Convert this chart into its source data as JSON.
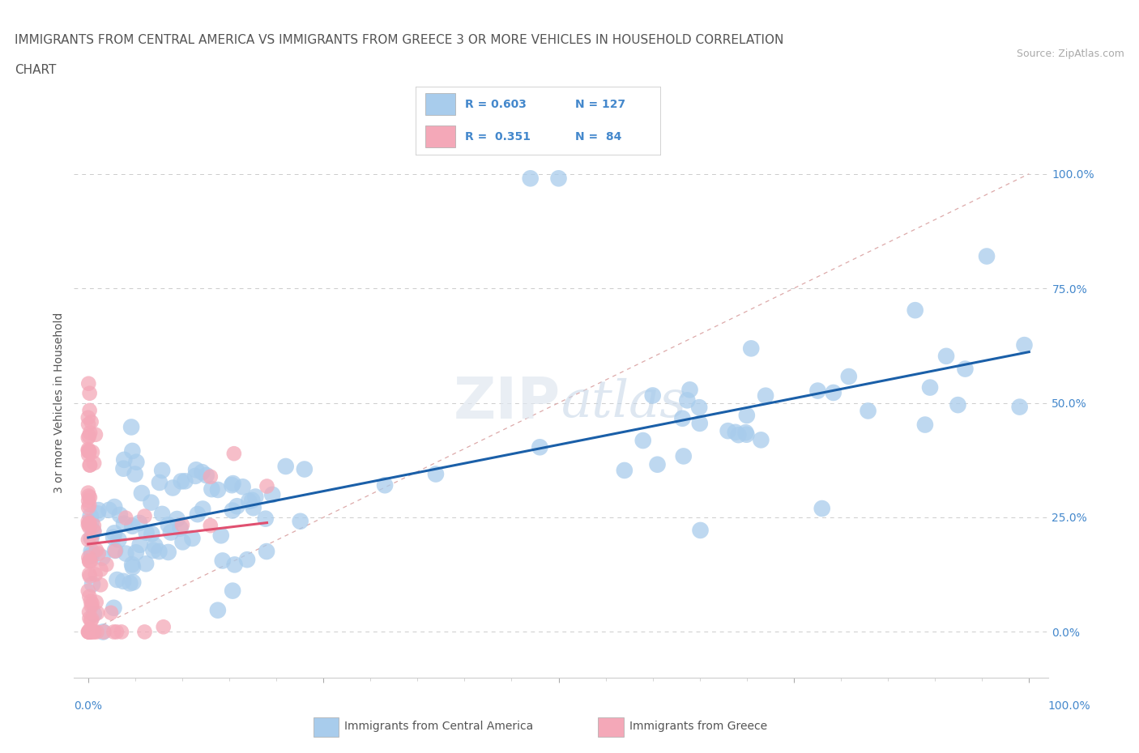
{
  "title_line1": "IMMIGRANTS FROM CENTRAL AMERICA VS IMMIGRANTS FROM GREECE 3 OR MORE VEHICLES IN HOUSEHOLD CORRELATION",
  "title_line2": "CHART",
  "source": "Source: ZipAtlas.com",
  "ylabel": "3 or more Vehicles in Household",
  "watermark": "ZIPatlas",
  "legend_blue_R": "0.603",
  "legend_blue_N": "127",
  "legend_pink_R": "0.351",
  "legend_pink_N": "84",
  "blue_color": "#a8ccec",
  "pink_color": "#f4a8b8",
  "blue_line_color": "#1a5fa8",
  "pink_line_color": "#e05070",
  "diagonal_color": "#ddaaaa",
  "background_color": "#ffffff",
  "title_color": "#555555",
  "label_color": "#4488cc",
  "tick_color": "#4488cc",
  "source_color": "#aaaaaa",
  "ylabel_color": "#555555",
  "watermark_color": "#dddddd",
  "legend_text_color": "#4488cc"
}
